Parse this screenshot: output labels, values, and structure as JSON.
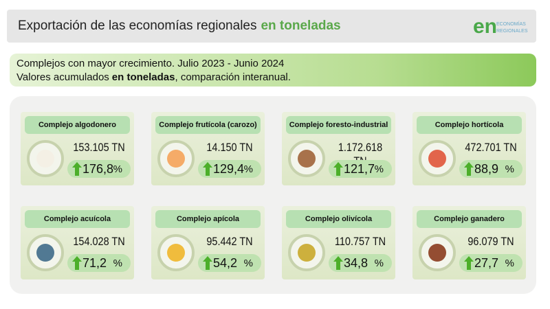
{
  "header": {
    "title": "Exportación de las economías regionales",
    "title_highlight": "en toneladas",
    "logo_mark": "en",
    "logo_text_1": "ECONOMÍAS",
    "logo_text_2": "REGIONALES"
  },
  "banner": {
    "line_1": "Complejos con mayor crecimiento. Julio 2023 - Junio 2024",
    "line_2_start": "Valores acumulados",
    "line_2_highlight": "en toneladas",
    "line_2_end": ", comparación interanual."
  },
  "cards": [
    {
      "name": "Complejo algodonero",
      "tonnes": "153.105 TN",
      "growth": "176,8",
      "unit": "%"
    },
    {
      "name": "Complejo frutícola (carozo)",
      "tonnes": "14.150 TN",
      "growth": "129,4",
      "unit": "%"
    },
    {
      "name": "Complejo foresto-industrial",
      "tonnes": "1.172.618 TN",
      "growth": "121,7",
      "unit": "%"
    },
    {
      "name": "Complejo hortícola",
      "tonnes": "472.701 TN",
      "growth": "88,9",
      "unit": "%"
    },
    {
      "name": "Complejo acuícola",
      "tonnes": "154.028 TN",
      "growth": "71,2",
      "unit": "%"
    },
    {
      "name": "Complejo apícola",
      "tonnes": "95.442 TN",
      "growth": "54,2",
      "unit": "%"
    },
    {
      "name": "Complejo olivícola",
      "tonnes": "110.757 TN",
      "growth": "34,8",
      "unit": "%"
    },
    {
      "name": "Complejo ganadero",
      "tonnes": "96.079 TN",
      "growth": "27,7",
      "unit": "%"
    }
  ]
}
